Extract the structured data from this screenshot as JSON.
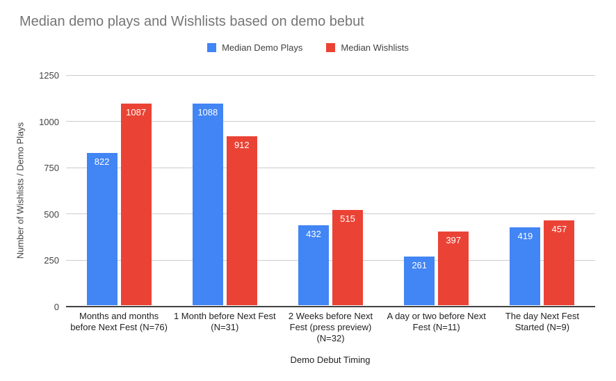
{
  "chart_data": {
    "type": "bar",
    "title": "Median demo plays and Wishlists based on demo bebut",
    "categories": [
      "Months and months before Next Fest (N=76)",
      "1 Month before Next Fest (N=31)",
      "2 Weeks before Next Fest (press preview) (N=32)",
      "A day or two before Next Fest (N=11)",
      "The day Next Fest Started (N=9)"
    ],
    "series": [
      {
        "name": "Median Demo Plays",
        "color": "#4285f4",
        "values": [
          822,
          1088,
          432,
          261,
          419
        ]
      },
      {
        "name": "Median Wishlists",
        "color": "#ea4335",
        "values": [
          1087,
          912,
          515,
          397,
          457
        ]
      }
    ],
    "xlabel": "Demo Debut Timing",
    "ylabel": "Number of Wishlists / Demo Plays",
    "ylim": [
      0,
      1250
    ],
    "yticks": [
      0,
      250,
      500,
      750,
      1000,
      1250
    ],
    "grid": true,
    "legend_position": "top",
    "value_labels": "inside-top",
    "colors": {
      "background": "#ffffff",
      "title_text": "#757575",
      "axis_text": "#424242",
      "category_text": "#222222",
      "gridline": "#cccccc",
      "baseline": "#424242",
      "value_label_text": "#ffffff"
    }
  }
}
